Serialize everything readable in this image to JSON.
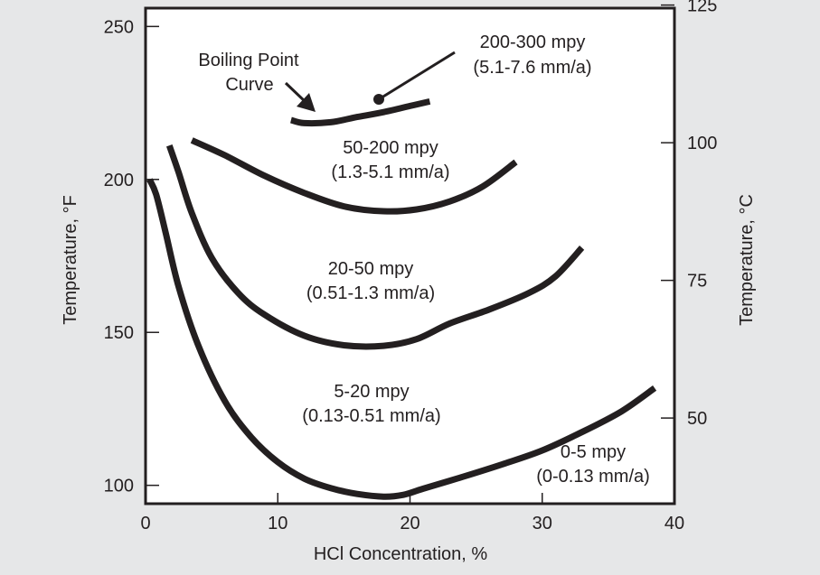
{
  "chart_data": {
    "type": "line",
    "title": "",
    "xlabel": "HCl Concentration, %",
    "ylabel_left": "Temperature, °F",
    "ylabel_right": "Temperature, °C",
    "xlim": [
      0,
      40
    ],
    "ylim_f": [
      94,
      256
    ],
    "x_ticks": [
      0,
      10,
      20,
      30,
      40
    ],
    "y_ticks_left": [
      100,
      150,
      200,
      250
    ],
    "y_ticks_right": [
      50,
      75,
      100,
      125
    ],
    "grid": false,
    "legend": "none",
    "series": [
      {
        "label_lines": [
          "200-300 mpy",
          "(5.1-7.6 mm/a)"
        ],
        "points": [
          [
            11,
            219.4
          ],
          [
            12,
            218.4
          ],
          [
            14,
            218.7
          ],
          [
            16,
            220.4
          ],
          [
            18,
            222.0
          ],
          [
            20,
            224.0
          ],
          [
            21.5,
            225.5
          ]
        ]
      },
      {
        "label_lines": [
          "50-200 mpy",
          "(1.3-5.1 mm/a)"
        ],
        "points": [
          [
            3.5,
            212.8
          ],
          [
            6,
            207.9
          ],
          [
            9,
            201.2
          ],
          [
            12,
            195.6
          ],
          [
            15,
            191.2
          ],
          [
            18,
            189.6
          ],
          [
            20.5,
            190.2
          ],
          [
            23,
            192.8
          ],
          [
            25.5,
            197.7
          ],
          [
            28,
            205.7
          ]
        ]
      },
      {
        "label_lines": [
          "20-50 mpy",
          "(0.51-1.3 mm/a)"
        ],
        "points": [
          [
            1.8,
            211.1
          ],
          [
            2.5,
            202.3
          ],
          [
            3.5,
            189.0
          ],
          [
            5,
            174.4
          ],
          [
            7,
            162.9
          ],
          [
            9,
            155.8
          ],
          [
            12,
            148.9
          ],
          [
            15,
            145.8
          ],
          [
            18,
            145.6
          ],
          [
            20.5,
            147.8
          ],
          [
            23,
            152.9
          ],
          [
            26,
            157.5
          ],
          [
            29,
            162.9
          ],
          [
            31,
            168.3
          ],
          [
            33,
            177.7
          ]
        ]
      },
      {
        "label_lines": [
          "5-20 mpy",
          "(0.13-0.51 mm/a)"
        ],
        "points": [
          [
            0.3,
            200.0
          ],
          [
            0.8,
            195.1
          ],
          [
            1.5,
            183.0
          ],
          [
            2.5,
            164.9
          ],
          [
            4,
            145.6
          ],
          [
            6,
            127.5
          ],
          [
            8,
            115.7
          ],
          [
            10,
            107.6
          ],
          [
            12,
            102.2
          ],
          [
            14,
            99.1
          ],
          [
            16,
            97.2
          ],
          [
            18,
            96.3
          ],
          [
            19.5,
            96.9
          ],
          [
            21,
            98.9
          ],
          [
            24,
            102.8
          ],
          [
            27,
            106.9
          ],
          [
            30,
            111.4
          ],
          [
            33,
            117.4
          ],
          [
            36,
            124.2
          ],
          [
            38.5,
            131.8
          ]
        ]
      }
    ],
    "annotations": {
      "boiling_point": [
        "Boiling Point",
        "Curve"
      ],
      "region_0_5": [
        "0-5 mpy",
        "(0-0.13 mm/a)"
      ]
    }
  },
  "colors": {
    "background": "#e6e7e8",
    "plot_area": "#ffffff",
    "ink": "#231f20"
  }
}
